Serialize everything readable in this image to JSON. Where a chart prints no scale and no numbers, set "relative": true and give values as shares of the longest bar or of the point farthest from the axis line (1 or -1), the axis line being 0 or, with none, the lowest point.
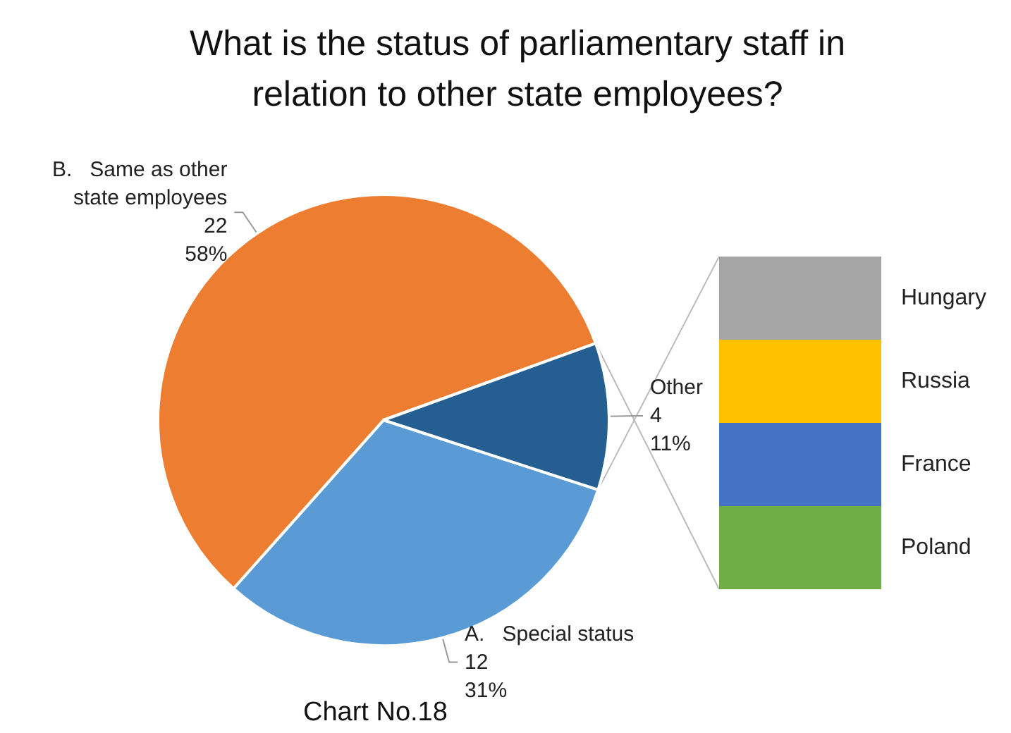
{
  "chart_data": [
    {
      "type": "pie",
      "title": "What is the status of parliamentary staff in\nrelation to other state employees?",
      "categories": [
        "A.   Special status",
        "B.   Same as other\nstate employees",
        "Other"
      ],
      "values": [
        12,
        22,
        4
      ],
      "colors": [
        "#5b9bd5",
        "#ed7d31",
        "#255e91"
      ],
      "value_labels": [
        "12\n31%",
        "22\n58%",
        "4\n11%"
      ],
      "annotations": [
        "Chart No.18"
      ]
    },
    {
      "type": "bar",
      "stacked": true,
      "relative": true,
      "categories": [
        null
      ],
      "series": [
        {
          "name": "Poland",
          "color": "#70ad47",
          "values": [
            0.25
          ]
        },
        {
          "name": "France",
          "color": "#4472c4",
          "values": [
            0.25
          ]
        },
        {
          "name": "Russia",
          "color": "#ffc000",
          "values": [
            0.25
          ]
        },
        {
          "name": "Hungary",
          "color": "#a5a5a5",
          "values": [
            0.25
          ]
        }
      ]
    }
  ]
}
